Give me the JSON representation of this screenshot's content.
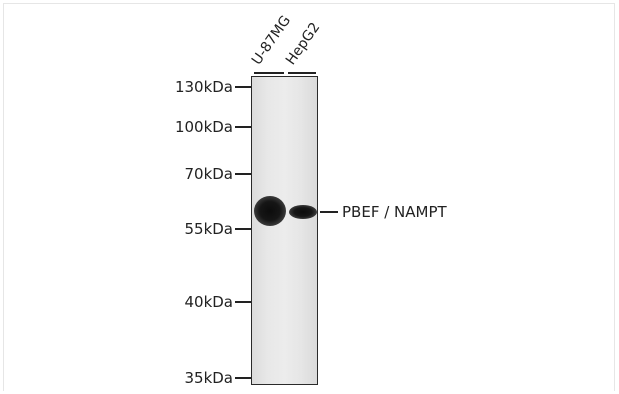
{
  "markers": [
    {
      "label": "130kDa"
    },
    {
      "label": "100kDa"
    },
    {
      "label": "70kDa"
    },
    {
      "label": "55kDa"
    },
    {
      "label": "40kDa"
    },
    {
      "label": "35kDa"
    }
  ],
  "lanes": [
    {
      "label": "U-87MG"
    },
    {
      "label": "HepG2"
    }
  ],
  "protein": {
    "label": "PBEF / NAMPT"
  }
}
